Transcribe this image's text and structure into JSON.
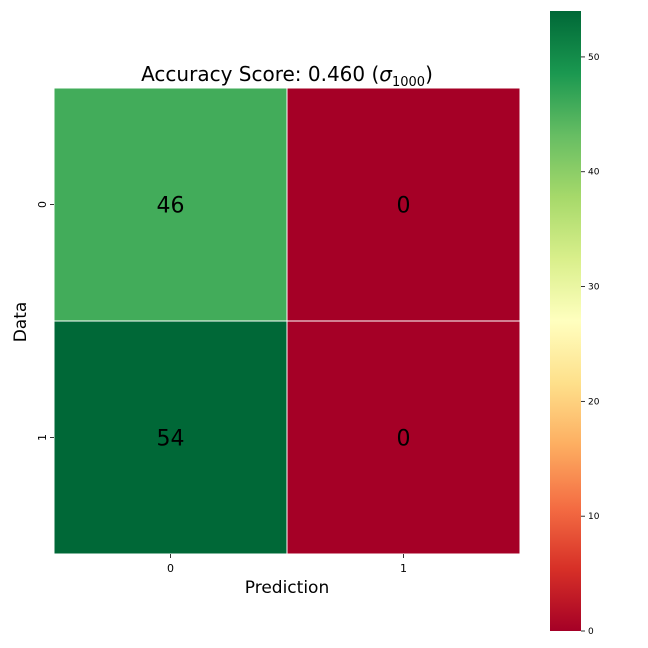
{
  "chart_data": {
    "type": "heatmap",
    "title": "Accuracy Score: 0.460 (",
    "title_sigma": "σ",
    "title_subscript": "1000",
    "title_close": ")",
    "xlabel": "Prediction",
    "ylabel": "Data",
    "x_categories": [
      "0",
      "1"
    ],
    "y_categories": [
      "0",
      "1"
    ],
    "matrix": [
      [
        46,
        0
      ],
      [
        54,
        0
      ]
    ],
    "colormap": "RdYlGn",
    "colorbar": {
      "range": [
        0,
        54
      ],
      "ticks": [
        0,
        10,
        20,
        30,
        40,
        50
      ]
    },
    "colors": {
      "46": "#42ac5a",
      "54": "#006837",
      "0": "#a50026",
      "cell_border": "#ffffff"
    }
  }
}
